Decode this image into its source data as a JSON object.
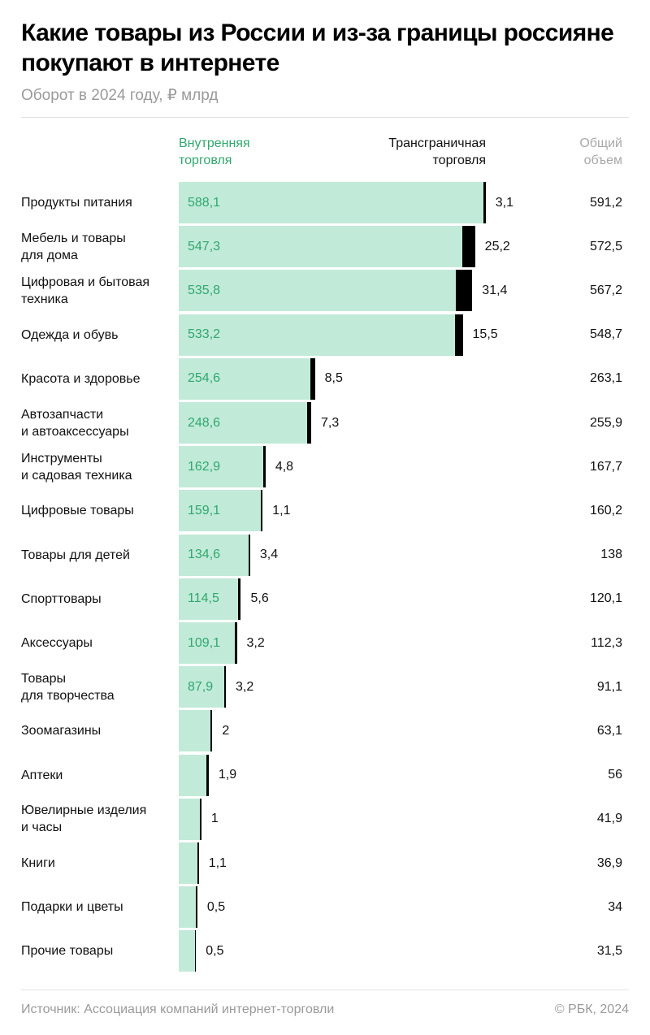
{
  "chart_data": {
    "type": "bar",
    "orientation": "horizontal",
    "stacked": true,
    "title": "Какие товары из России и из-за границы россияне покупают в интернете",
    "subtitle": "Оборот в 2024 году, ₽ млрд",
    "column_headers": {
      "domestic": "Внутренняя торговля",
      "cross_border": "Трансграничная торговля",
      "total": "Общий объем"
    },
    "categories": [
      "Продукты питания",
      "Мебель и товары для дома",
      "Цифровая и бытовая техника",
      "Одежда и обувь",
      "Красота и здоровье",
      "Автозапчасти и автоаксессуары",
      "Инструменты и садовая техника",
      "Цифровые товары",
      "Товары для детей",
      "Спорттовары",
      "Аксессуары",
      "Товары для творчества",
      "Зоомагазины",
      "Аптеки",
      "Ювелирные изделия и часы",
      "Книги",
      "Подарки и цветы",
      "Прочие товары"
    ],
    "category_lines": [
      [
        "Продукты питания"
      ],
      [
        "Мебель и товары",
        "для дома"
      ],
      [
        "Цифровая и бытовая",
        "техника"
      ],
      [
        "Одежда и обувь"
      ],
      [
        "Красота и здоровье"
      ],
      [
        "Автозапчасти",
        "и автоаксессуары"
      ],
      [
        "Инструменты",
        "и садовая техника"
      ],
      [
        "Цифровые товары"
      ],
      [
        "Товары для детей"
      ],
      [
        "Спорттовары"
      ],
      [
        "Аксессуары"
      ],
      [
        "Товары",
        "для творчества"
      ],
      [
        "Зоомагазины"
      ],
      [
        "Аптеки"
      ],
      [
        "Ювелирные изделия",
        "и часы"
      ],
      [
        "Книги"
      ],
      [
        "Подарки и цветы"
      ],
      [
        "Прочие товары"
      ]
    ],
    "series": [
      {
        "name": "Внутренняя торговля",
        "color": "#c1ead8",
        "label_color": "#2fa86e",
        "values": [
          588.1,
          547.3,
          535.8,
          533.2,
          254.6,
          248.6,
          162.9,
          159.1,
          134.6,
          114.5,
          109.1,
          87.9,
          61.1,
          54.1,
          40.9,
          35.8,
          33.5,
          31.0
        ],
        "labels": [
          "588,1",
          "547,3",
          "535,8",
          "533,2",
          "254,6",
          "248,6",
          "162,9",
          "159,1",
          "134,6",
          "114,5",
          "109,1",
          "87,9",
          "",
          "",
          "",
          "",
          "",
          ""
        ]
      },
      {
        "name": "Трансграничная торговля",
        "color": "#000000",
        "values": [
          3.1,
          25.2,
          31.4,
          15.5,
          8.5,
          7.3,
          4.8,
          1.1,
          3.4,
          5.6,
          3.2,
          3.2,
          2,
          1.9,
          1,
          1.1,
          0.5,
          0.5
        ],
        "labels": [
          "3,1",
          "25,2",
          "31,4",
          "15,5",
          "8,5",
          "7,3",
          "4,8",
          "1,1",
          "3,4",
          "5,6",
          "3,2",
          "3,2",
          "2",
          "1,9",
          "1",
          "1,1",
          "0,5",
          "0,5"
        ]
      }
    ],
    "totals": [
      591.2,
      572.5,
      567.2,
      548.7,
      263.1,
      255.9,
      167.7,
      160.2,
      138,
      120.1,
      112.3,
      91.1,
      63.1,
      56,
      41.9,
      36.9,
      34,
      31.5
    ],
    "total_labels": [
      "591,2",
      "572,5",
      "567,2",
      "548,7",
      "263,1",
      "255,9",
      "167,7",
      "160,2",
      "138",
      "120,1",
      "112,3",
      "91,1",
      "63,1",
      "56",
      "41,9",
      "36,9",
      "34",
      "31,5"
    ],
    "xlim": [
      0,
      600
    ],
    "grid": false,
    "legend": "top (column headers)"
  },
  "footer": {
    "source": "Источник: Ассоциация компаний интернет-торговли",
    "copyright": "© РБК, 2024"
  }
}
